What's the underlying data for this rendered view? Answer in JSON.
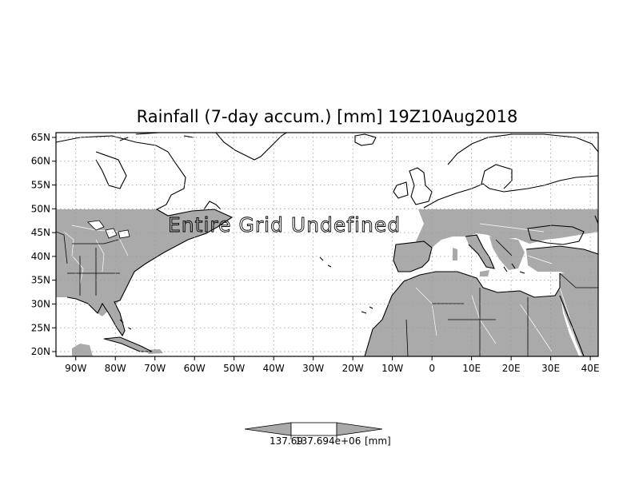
{
  "map": {
    "title": "Rainfall (7-day accum.) [mm] 19Z10Aug2018",
    "overlay_text": "Entire Grid Undefined",
    "lon_labels": [
      "90W",
      "80W",
      "70W",
      "60W",
      "50W",
      "40W",
      "30W",
      "20W",
      "10W",
      "0",
      "10E",
      "20E",
      "30E",
      "40E"
    ],
    "lat_labels": [
      "65N",
      "60N",
      "55N",
      "50N",
      "45N",
      "40N",
      "35N",
      "30N",
      "25N",
      "20N"
    ],
    "lon_range": [
      -95,
      42
    ],
    "lat_range": [
      19,
      66
    ],
    "grid": true,
    "undefined_band_lat": [
      19,
      50
    ],
    "colors": {
      "land_shade": "#aaaaaa",
      "coast": "#000000",
      "grid": "#999999",
      "colorbar_fill": "#aaaaaa"
    }
  },
  "colorbar": {
    "min_label": "137.69",
    "mid_label": "137.694e+06",
    "unit_label": "[mm]"
  }
}
